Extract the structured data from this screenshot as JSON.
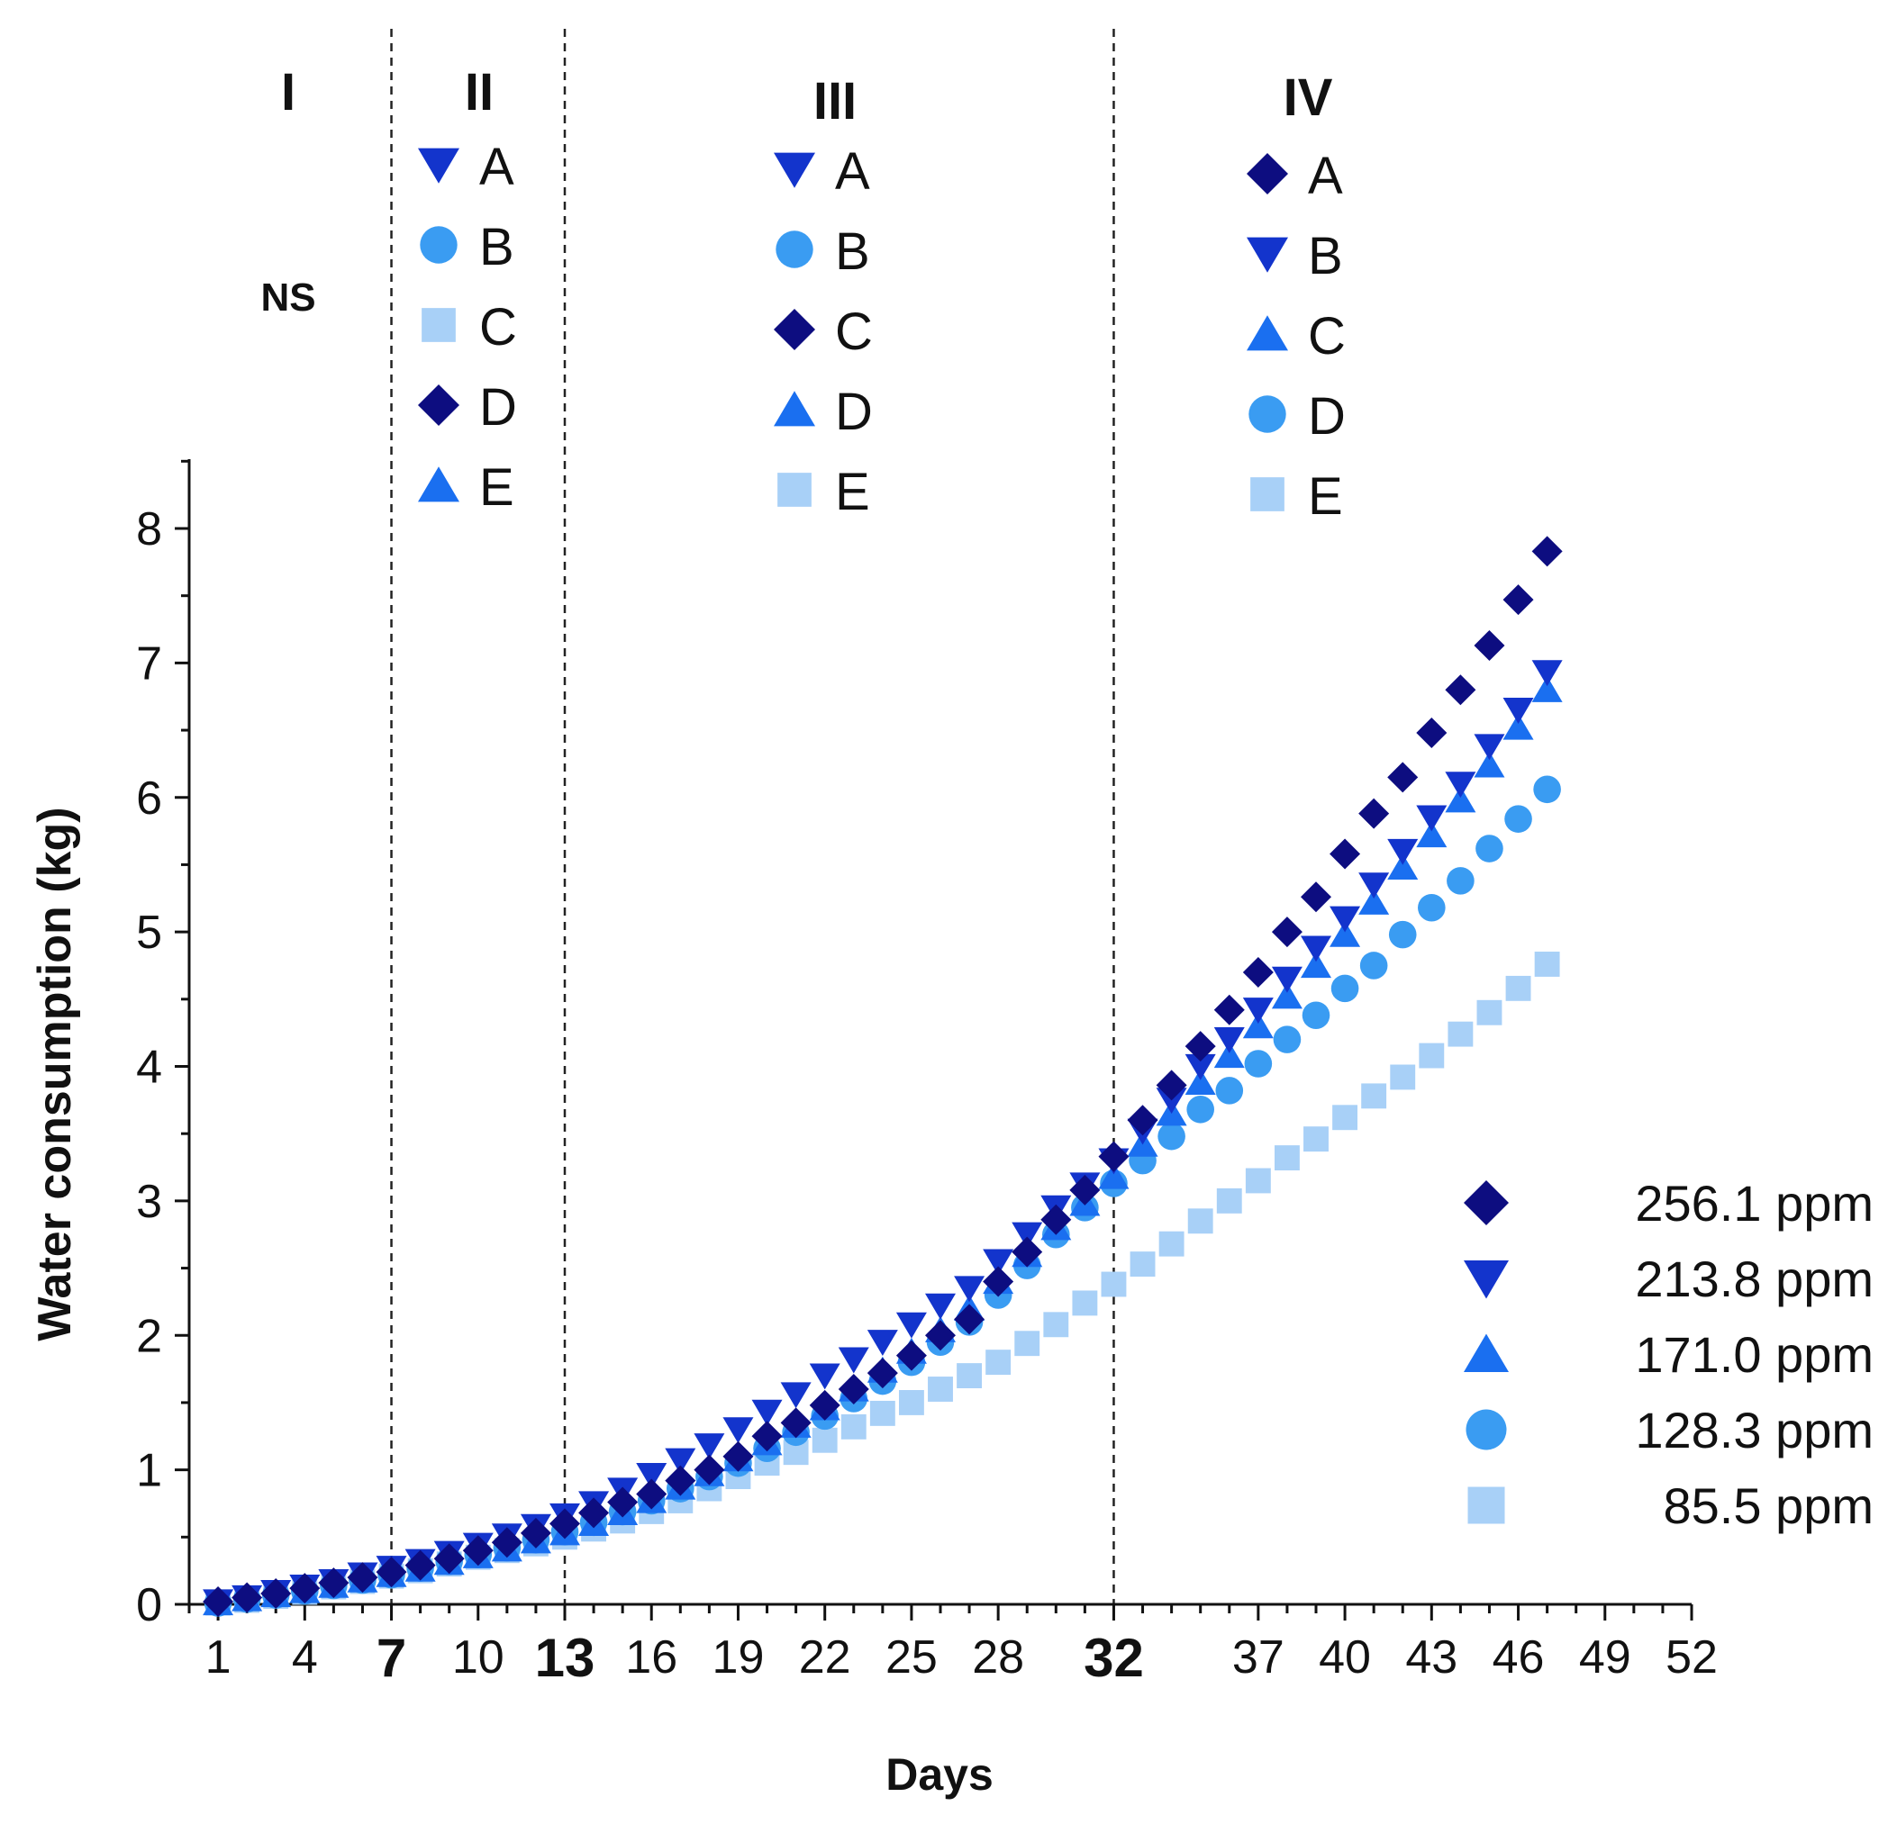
{
  "chart_data": {
    "type": "scatter",
    "xlabel": "Days",
    "ylabel": "Water consumption (kg)",
    "xlim": [
      0,
      52
    ],
    "ylim": [
      0,
      8.5
    ],
    "xticks": [
      1,
      4,
      7,
      10,
      13,
      16,
      19,
      22,
      25,
      28,
      32,
      37,
      40,
      43,
      46,
      49,
      52
    ],
    "bold_xticks": [
      7,
      13,
      32
    ],
    "yticks": [
      0,
      1,
      2,
      3,
      4,
      5,
      6,
      7,
      8
    ],
    "phase_boundaries": [
      7,
      13,
      32
    ],
    "phases": [
      {
        "label": "I",
        "note": "NS",
        "legend": []
      },
      {
        "label": "II",
        "legend": [
          {
            "marker": "triangle-down",
            "letter": "A"
          },
          {
            "marker": "circle",
            "letter": "B"
          },
          {
            "marker": "square",
            "letter": "C"
          },
          {
            "marker": "diamond",
            "letter": "D"
          },
          {
            "marker": "triangle-up",
            "letter": "E"
          }
        ]
      },
      {
        "label": "III",
        "legend": [
          {
            "marker": "triangle-down",
            "letter": "A"
          },
          {
            "marker": "circle",
            "letter": "B"
          },
          {
            "marker": "diamond",
            "letter": "C"
          },
          {
            "marker": "triangle-up",
            "letter": "D"
          },
          {
            "marker": "square",
            "letter": "E"
          }
        ]
      },
      {
        "label": "IV",
        "legend": [
          {
            "marker": "diamond",
            "letter": "A"
          },
          {
            "marker": "triangle-down",
            "letter": "B"
          },
          {
            "marker": "triangle-up",
            "letter": "C"
          },
          {
            "marker": "circle",
            "letter": "D"
          },
          {
            "marker": "square",
            "letter": "E"
          }
        ]
      }
    ],
    "legend_position": "bottom-right",
    "colors": {
      "diamond": "#0d0d80",
      "triangle-down": "#1334cc",
      "triangle-up": "#1a6ff0",
      "circle": "#3a9cf2",
      "square": "#a8d0f7"
    },
    "series": [
      {
        "name": "256.1 ppm",
        "marker": "diamond",
        "x": [
          1,
          2,
          3,
          4,
          5,
          6,
          7,
          8,
          9,
          10,
          11,
          12,
          13,
          14,
          15,
          16,
          17,
          18,
          19,
          20,
          21,
          22,
          23,
          24,
          25,
          26,
          27,
          28,
          29,
          30,
          31,
          32,
          33,
          34,
          35,
          36,
          37,
          38,
          39,
          40,
          41,
          42,
          43,
          44,
          45,
          46,
          47
        ],
        "values": [
          0.02,
          0.05,
          0.08,
          0.12,
          0.16,
          0.2,
          0.24,
          0.29,
          0.34,
          0.4,
          0.46,
          0.53,
          0.6,
          0.68,
          0.76,
          0.82,
          0.92,
          1.0,
          1.1,
          1.25,
          1.35,
          1.48,
          1.6,
          1.72,
          1.85,
          2.0,
          2.12,
          2.4,
          2.62,
          2.86,
          3.08,
          3.33,
          3.6,
          3.86,
          4.15,
          4.42,
          4.7,
          5.0,
          5.26,
          5.58,
          5.88,
          6.15,
          6.48,
          6.8,
          7.13,
          7.47,
          7.83
        ]
      },
      {
        "name": "213.8 ppm",
        "marker": "triangle-down",
        "x": [
          1,
          2,
          3,
          4,
          5,
          6,
          7,
          8,
          9,
          10,
          11,
          12,
          13,
          14,
          15,
          16,
          17,
          18,
          19,
          20,
          21,
          22,
          23,
          24,
          25,
          26,
          27,
          28,
          29,
          30,
          31,
          32,
          33,
          34,
          35,
          36,
          37,
          38,
          39,
          40,
          41,
          42,
          43,
          44,
          45,
          46,
          47
        ],
        "values": [
          0.02,
          0.05,
          0.09,
          0.13,
          0.17,
          0.22,
          0.27,
          0.32,
          0.38,
          0.44,
          0.51,
          0.58,
          0.66,
          0.75,
          0.85,
          0.96,
          1.07,
          1.18,
          1.3,
          1.43,
          1.56,
          1.7,
          1.82,
          1.95,
          2.08,
          2.22,
          2.35,
          2.55,
          2.75,
          2.95,
          3.12,
          3.3,
          3.52,
          3.75,
          4.0,
          4.2,
          4.42,
          4.65,
          4.88,
          5.1,
          5.35,
          5.6,
          5.85,
          6.1,
          6.38,
          6.65,
          6.93
        ]
      },
      {
        "name": "171.0 ppm",
        "marker": "triangle-up",
        "x": [
          1,
          2,
          3,
          4,
          5,
          6,
          7,
          8,
          9,
          10,
          11,
          12,
          13,
          14,
          15,
          16,
          17,
          18,
          19,
          20,
          21,
          22,
          23,
          24,
          25,
          26,
          27,
          28,
          29,
          30,
          31,
          32,
          33,
          34,
          35,
          36,
          37,
          38,
          39,
          40,
          41,
          42,
          43,
          44,
          45,
          46,
          47
        ],
        "values": [
          0.01,
          0.04,
          0.07,
          0.1,
          0.14,
          0.18,
          0.22,
          0.26,
          0.31,
          0.36,
          0.41,
          0.47,
          0.53,
          0.6,
          0.68,
          0.77,
          0.87,
          0.97,
          1.08,
          1.2,
          1.33,
          1.46,
          1.6,
          1.74,
          1.88,
          2.04,
          2.2,
          2.4,
          2.6,
          2.8,
          2.98,
          3.18,
          3.42,
          3.65,
          3.88,
          4.08,
          4.3,
          4.52,
          4.75,
          4.98,
          5.22,
          5.48,
          5.72,
          5.98,
          6.24,
          6.52,
          6.8
        ]
      },
      {
        "name": "128.3 ppm",
        "marker": "circle",
        "x": [
          1,
          2,
          3,
          4,
          5,
          6,
          7,
          8,
          9,
          10,
          11,
          12,
          13,
          14,
          15,
          16,
          17,
          18,
          19,
          20,
          21,
          22,
          23,
          24,
          25,
          26,
          27,
          28,
          29,
          30,
          31,
          32,
          33,
          34,
          35,
          36,
          37,
          38,
          39,
          40,
          41,
          42,
          43,
          44,
          45,
          46,
          47
        ],
        "values": [
          0.01,
          0.04,
          0.07,
          0.1,
          0.14,
          0.18,
          0.22,
          0.27,
          0.32,
          0.37,
          0.42,
          0.48,
          0.54,
          0.61,
          0.69,
          0.77,
          0.86,
          0.95,
          1.05,
          1.16,
          1.28,
          1.4,
          1.53,
          1.66,
          1.8,
          1.95,
          2.1,
          2.3,
          2.52,
          2.75,
          2.95,
          3.13,
          3.3,
          3.48,
          3.68,
          3.82,
          4.02,
          4.2,
          4.38,
          4.58,
          4.75,
          4.98,
          5.18,
          5.38,
          5.62,
          5.84,
          6.06
        ]
      },
      {
        "name": "85.5 ppm",
        "marker": "square",
        "x": [
          1,
          2,
          3,
          4,
          5,
          6,
          7,
          8,
          9,
          10,
          11,
          12,
          13,
          14,
          15,
          16,
          17,
          18,
          19,
          20,
          21,
          22,
          23,
          24,
          25,
          26,
          27,
          28,
          29,
          30,
          31,
          32,
          33,
          34,
          35,
          36,
          37,
          38,
          39,
          40,
          41,
          42,
          43,
          44,
          45,
          46,
          47
        ],
        "values": [
          0.01,
          0.03,
          0.06,
          0.09,
          0.13,
          0.17,
          0.21,
          0.25,
          0.3,
          0.35,
          0.4,
          0.45,
          0.5,
          0.56,
          0.62,
          0.69,
          0.77,
          0.86,
          0.95,
          1.05,
          1.13,
          1.22,
          1.32,
          1.42,
          1.5,
          1.6,
          1.7,
          1.8,
          1.94,
          2.08,
          2.24,
          2.38,
          2.53,
          2.68,
          2.85,
          3.0,
          3.15,
          3.32,
          3.46,
          3.62,
          3.78,
          3.92,
          4.08,
          4.24,
          4.4,
          4.58,
          4.76
        ]
      }
    ]
  }
}
